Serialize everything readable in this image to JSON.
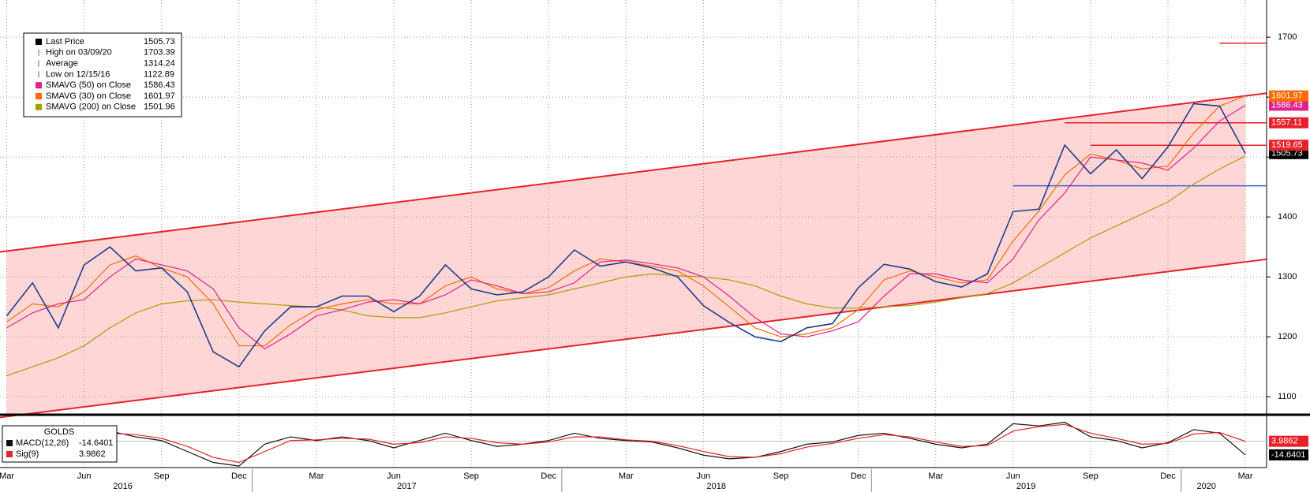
{
  "chart_data": {
    "type": "line",
    "categories": [
      "Mar",
      null,
      null,
      "Jun",
      null,
      null,
      "Sep",
      null,
      null,
      "Dec",
      null,
      null,
      "Mar",
      null,
      null,
      "Jun",
      null,
      null,
      "Sep",
      null,
      null,
      "Dec",
      null,
      null,
      "Mar",
      null,
      null,
      "Jun",
      null,
      null,
      "Sep",
      null,
      null,
      "Dec",
      null,
      null,
      "Mar",
      null,
      null,
      "Jun",
      null,
      null,
      "Sep",
      null,
      null,
      "Dec",
      null,
      null,
      "Mar"
    ],
    "years": [
      "2016",
      "2017",
      "2018",
      "2019",
      "2020"
    ],
    "ylim": [
      1070,
      1762
    ],
    "yticks": [
      1100,
      1200,
      1300,
      1400,
      1500,
      1600,
      1700
    ],
    "grid": true,
    "series": [
      {
        "name": "Last Price",
        "color": "#1f3d8a",
        "values": [
          1235,
          1290,
          1215,
          1320,
          1350,
          1310,
          1315,
          1275,
          1175,
          1150,
          1210,
          1250,
          1250,
          1268,
          1268,
          1242,
          1268,
          1320,
          1280,
          1270,
          1275,
          1300,
          1345,
          1318,
          1325,
          1315,
          1300,
          1252,
          1224,
          1200,
          1192,
          1215,
          1222,
          1282,
          1321,
          1313,
          1292,
          1283,
          1305,
          1409,
          1413,
          1520,
          1472,
          1512,
          1464,
          1517,
          1589,
          1585,
          1505.73
        ]
      },
      {
        "name": "SMAVG (50)  on Close",
        "color": "#e0218a",
        "values": [
          1215,
          1240,
          1255,
          1262,
          1300,
          1330,
          1320,
          1310,
          1280,
          1215,
          1180,
          1205,
          1235,
          1245,
          1258,
          1262,
          1255,
          1270,
          1295,
          1285,
          1272,
          1275,
          1290,
          1325,
          1328,
          1322,
          1315,
          1300,
          1268,
          1232,
          1205,
          1200,
          1210,
          1225,
          1268,
          1305,
          1305,
          1295,
          1290,
          1330,
          1395,
          1440,
          1500,
          1495,
          1490,
          1478,
          1515,
          1560,
          1586.43
        ]
      },
      {
        "name": "SMAVG (30)  on Close",
        "color": "#ff6a00",
        "values": [
          1225,
          1255,
          1250,
          1275,
          1320,
          1335,
          1315,
          1300,
          1255,
          1185,
          1185,
          1220,
          1245,
          1255,
          1262,
          1255,
          1255,
          1285,
          1300,
          1280,
          1272,
          1282,
          1310,
          1330,
          1325,
          1318,
          1310,
          1285,
          1250,
          1215,
          1200,
          1205,
          1215,
          1245,
          1295,
          1310,
          1300,
          1290,
          1295,
          1360,
          1410,
          1470,
          1505,
          1495,
          1480,
          1485,
          1540,
          1585,
          1601.97
        ]
      },
      {
        "name": "SMAVG (200)  on Close",
        "color": "#a8a000",
        "values": [
          1135,
          1150,
          1165,
          1185,
          1215,
          1240,
          1255,
          1260,
          1262,
          1258,
          1255,
          1252,
          1250,
          1245,
          1235,
          1232,
          1232,
          1240,
          1250,
          1260,
          1265,
          1270,
          1280,
          1290,
          1300,
          1305,
          1302,
          1300,
          1295,
          1285,
          1268,
          1255,
          1248,
          1248,
          1250,
          1252,
          1258,
          1265,
          1272,
          1290,
          1315,
          1340,
          1365,
          1385,
          1405,
          1425,
          1455,
          1480,
          1501.96
        ]
      }
    ],
    "stats": [
      {
        "label": "High on 03/09/20",
        "value": 1703.39
      },
      {
        "label": "Average",
        "value": 1314.24
      },
      {
        "label": "Low on 12/15/16",
        "value": 1122.89
      }
    ],
    "channel": {
      "upper": [
        1343,
        1602
      ],
      "lower": [
        1067,
        1325
      ]
    },
    "levels": [
      {
        "value": 1557.11,
        "color": "#e8202a",
        "x0": 41
      },
      {
        "value": 1519.65,
        "color": "#e8202a",
        "x0": 42
      },
      {
        "value": 1690,
        "color": "#e8202a",
        "x0": 47
      },
      {
        "value": 1452,
        "color": "#3a5fcd",
        "x0": 39
      }
    ],
    "macd": {
      "title": "GOLDS",
      "ylim": [
        -32,
        36
      ],
      "series": [
        {
          "name": "MACD(12,26)",
          "color": "#111111",
          "values": [
            5,
            8,
            0,
            15,
            18,
            10,
            5,
            -10,
            -25,
            -30,
            0,
            10,
            5,
            10,
            5,
            -5,
            5,
            15,
            5,
            -3,
            0,
            5,
            15,
            8,
            5,
            3,
            -5,
            -15,
            -20,
            -18,
            -10,
            0,
            3,
            12,
            15,
            8,
            0,
            -5,
            0,
            28,
            25,
            30,
            10,
            5,
            -5,
            2,
            20,
            15,
            -14.6401
          ]
        },
        {
          "name": "Sig(9)",
          "color": "#e8202a",
          "values": [
            3,
            6,
            4,
            10,
            15,
            13,
            8,
            -3,
            -18,
            -25,
            -10,
            5,
            6,
            8,
            7,
            0,
            2,
            10,
            8,
            2,
            0,
            3,
            10,
            10,
            6,
            4,
            -2,
            -10,
            -17,
            -18,
            -13,
            -4,
            1,
            8,
            13,
            10,
            3,
            -3,
            -2,
            18,
            24,
            27,
            15,
            8,
            0,
            1,
            14,
            16,
            3.9862
          ]
        }
      ]
    }
  }
}
